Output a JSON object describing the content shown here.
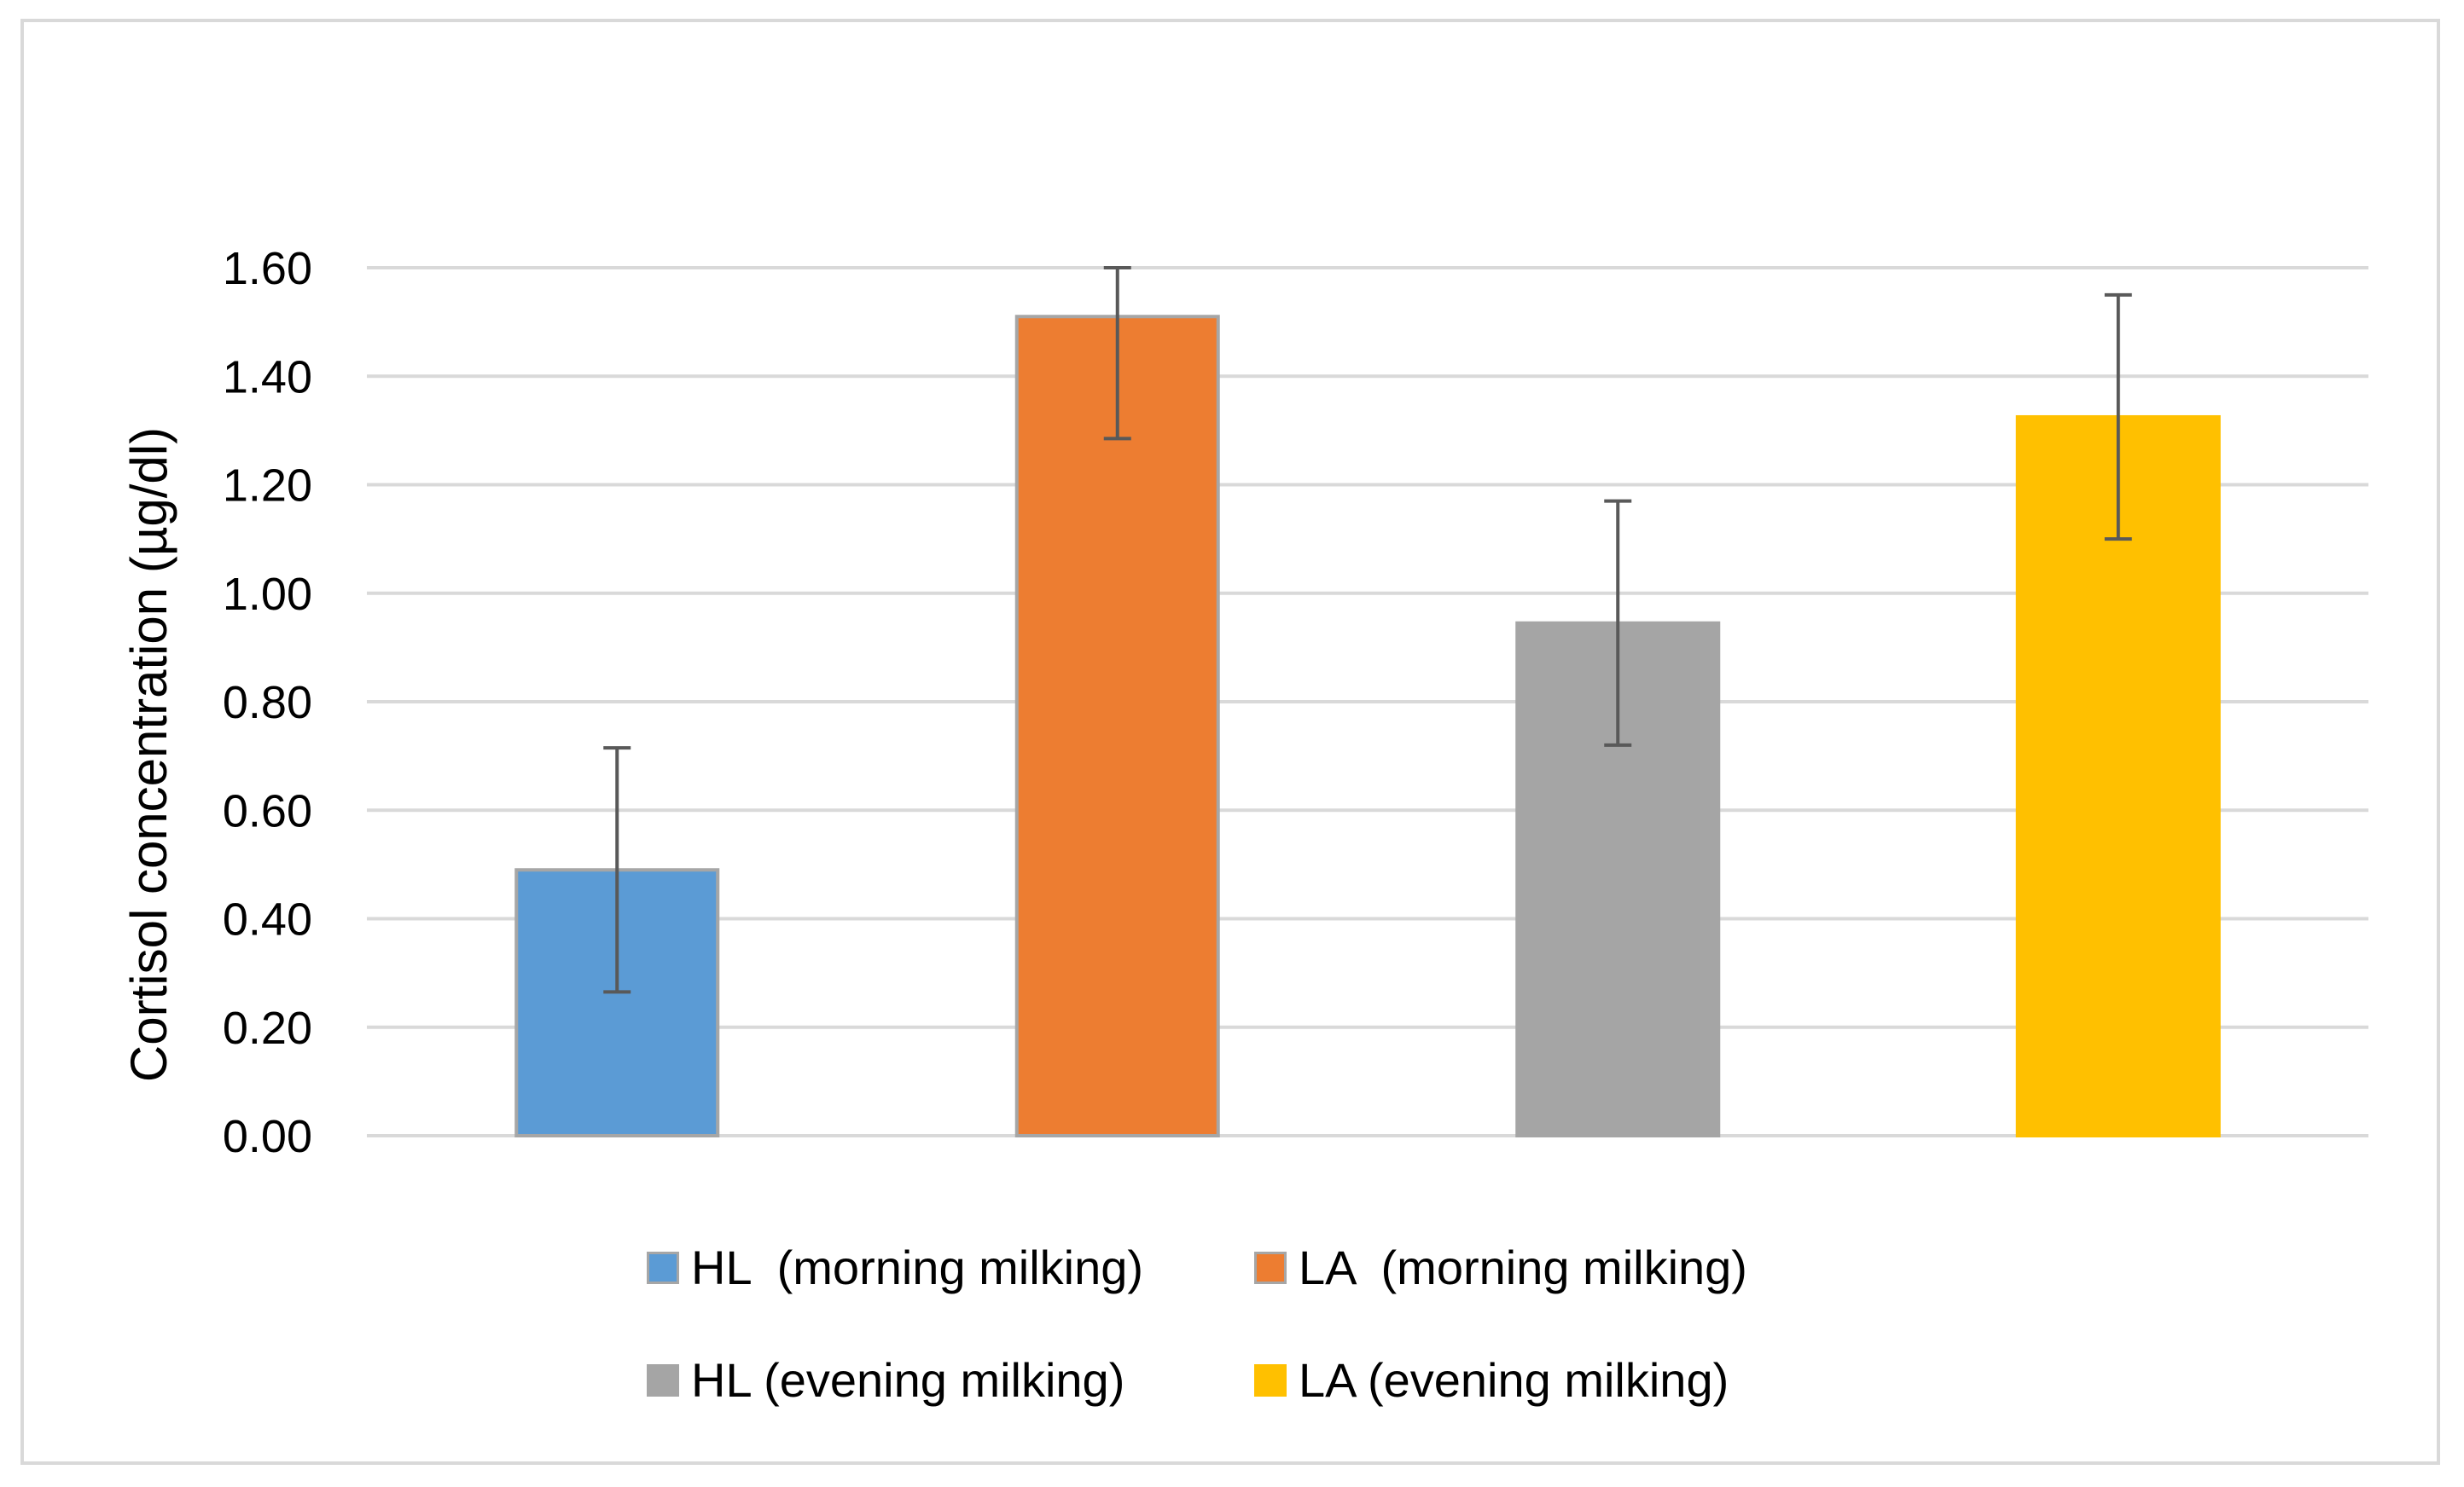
{
  "chart_data": {
    "type": "bar",
    "title": "",
    "xlabel": "",
    "ylabel": "Cortisol concentration (µg/dl)",
    "ylim": [
      0,
      1.6
    ],
    "yticks": [
      "0.00",
      "0.20",
      "0.40",
      "0.60",
      "0.80",
      "1.00",
      "1.20",
      "1.40",
      "1.60"
    ],
    "grid": true,
    "legend_position": "bottom",
    "series": [
      {
        "name": "HL  (morning milking)",
        "value": 0.49,
        "error": 0.225,
        "color": "#5b9bd5",
        "border": "#a6a6a6"
      },
      {
        "name": "LA  (morning milking)",
        "value": 1.51,
        "error": 0.225,
        "color": "#ed7d31",
        "border": "#a6a6a6"
      },
      {
        "name": "HL (evening milking)",
        "value": 0.945,
        "error": 0.225,
        "color": "#a5a5a5",
        "border": "#a5a5a5"
      },
      {
        "name": "LA (evening milking)",
        "value": 1.325,
        "error": 0.225,
        "color": "#ffc000",
        "border": "#ffc000"
      }
    ]
  }
}
